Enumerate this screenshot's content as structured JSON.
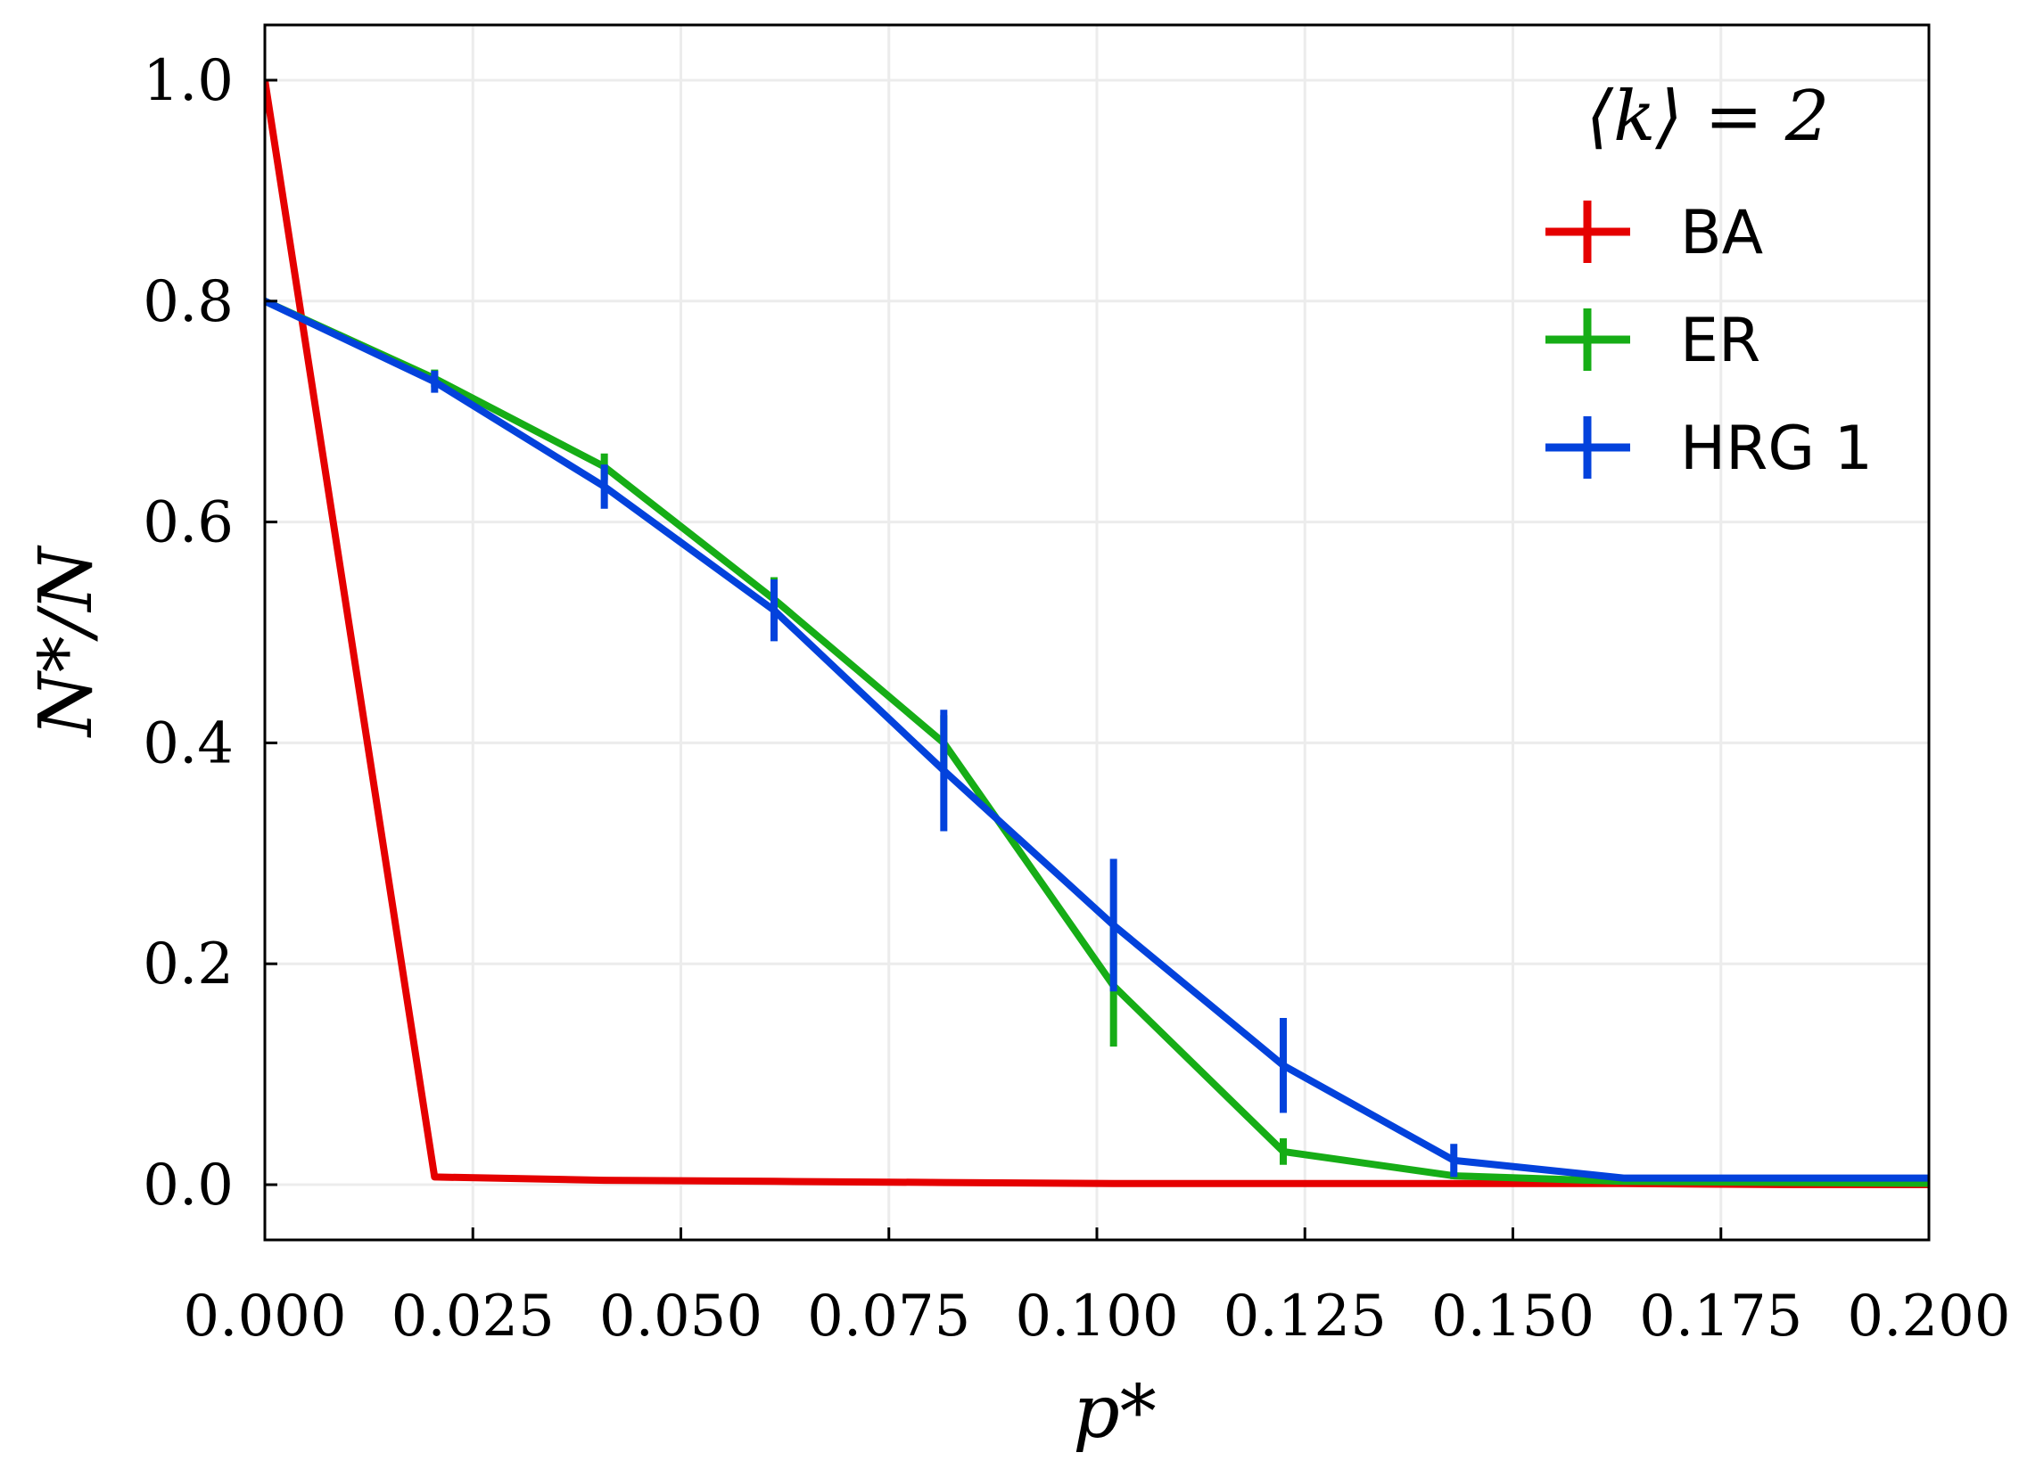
{
  "chart_data": {
    "type": "line",
    "xlabel": "p*",
    "ylabel": "N*/N",
    "xlim": [
      0.0,
      0.2
    ],
    "ylim": [
      -0.05,
      1.05
    ],
    "xticks": [
      "0.000",
      "0.025",
      "0.050",
      "0.075",
      "0.100",
      "0.125",
      "0.150",
      "0.175",
      "0.200"
    ],
    "yticks": [
      "0.0",
      "0.2",
      "0.4",
      "0.6",
      "0.8",
      "1.0"
    ],
    "grid": true,
    "legend": {
      "title": "⟨k⟩ = 2",
      "position": "top-right"
    },
    "series": [
      {
        "name": "BA",
        "color": "#e50000",
        "x": [
          0.0,
          0.0204,
          0.0408,
          0.0612,
          0.0816,
          0.102,
          0.1224,
          0.1429,
          0.1633,
          0.1837,
          0.2041
        ],
        "y": [
          1.0,
          0.007,
          0.004,
          0.003,
          0.002,
          0.001,
          0.001,
          0.001,
          0.001,
          0.0,
          0.0
        ],
        "err": [
          0,
          0,
          0,
          0,
          0,
          0,
          0,
          0,
          0,
          0,
          0
        ]
      },
      {
        "name": "ER",
        "color": "#16ad16",
        "x": [
          0.0,
          0.0204,
          0.0408,
          0.0612,
          0.0816,
          0.102,
          0.1224,
          0.1429,
          0.1633,
          0.1837,
          0.2041
        ],
        "y": [
          0.8,
          0.73,
          0.65,
          0.53,
          0.4,
          0.18,
          0.03,
          0.008,
          0.003,
          0.002,
          0.001
        ],
        "err": [
          0,
          0.008,
          0.012,
          0.02,
          0.025,
          0.055,
          0.012,
          0.003,
          0.001,
          0.001,
          0.001
        ]
      },
      {
        "name": "HRG 1",
        "color": "#0342dc",
        "x": [
          0.0,
          0.0204,
          0.0408,
          0.0612,
          0.0816,
          0.102,
          0.1224,
          0.1429,
          0.1633,
          0.1837,
          0.2041
        ],
        "y": [
          0.8,
          0.727,
          0.632,
          0.52,
          0.375,
          0.235,
          0.108,
          0.022,
          0.006,
          0.006,
          0.006
        ],
        "err": [
          0,
          0.01,
          0.02,
          0.028,
          0.055,
          0.06,
          0.043,
          0.015,
          0.002,
          0.002,
          0.002
        ]
      }
    ]
  }
}
